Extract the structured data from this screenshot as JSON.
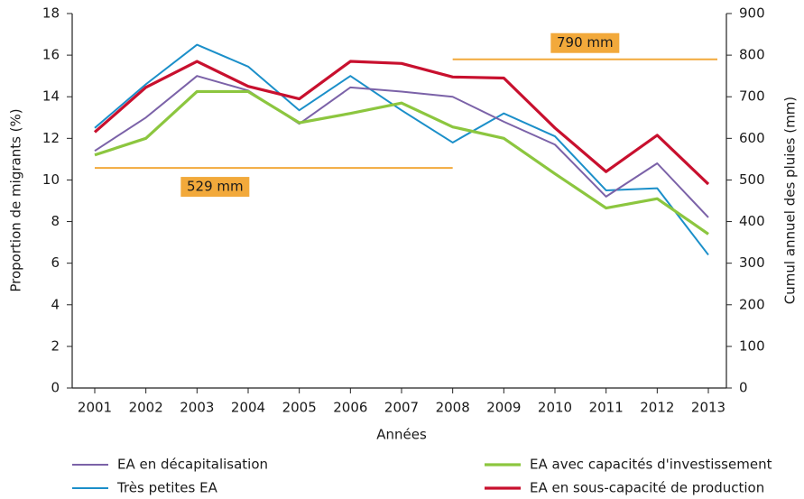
{
  "chart_data": {
    "type": "line",
    "x_label": "Années",
    "y_label": "Proportion de migrants (%)",
    "y2_label": "Cumul annuel des pluies (mm)",
    "categories": [
      "2001",
      "2002",
      "2003",
      "2004",
      "2005",
      "2006",
      "2007",
      "2008",
      "2009",
      "2010",
      "2011",
      "2012",
      "2013"
    ],
    "series": [
      {
        "name": "EA en décapitalisation",
        "color": "#7b62a8",
        "values": [
          11.4,
          13.0,
          15.0,
          14.3,
          12.7,
          14.45,
          14.25,
          14.0,
          12.8,
          11.7,
          9.2,
          10.8,
          8.2
        ]
      },
      {
        "name": "Très petites EA",
        "color": "#1b8fc9",
        "values": [
          12.5,
          14.6,
          16.5,
          15.45,
          13.35,
          15.0,
          13.35,
          11.8,
          13.2,
          12.1,
          9.5,
          9.6,
          6.4
        ]
      },
      {
        "name": "EA avec capacités d'investissement",
        "color": "#8cc63f",
        "values": [
          11.2,
          12.0,
          14.25,
          14.25,
          12.75,
          13.2,
          13.7,
          12.55,
          12.0,
          10.3,
          8.65,
          9.1,
          7.4
        ]
      },
      {
        "name": "EA en sous-capacité de production",
        "color": "#c8102e",
        "values": [
          12.3,
          14.45,
          15.7,
          14.5,
          13.9,
          15.7,
          15.6,
          14.95,
          14.9,
          12.5,
          10.4,
          12.15,
          9.8
        ]
      }
    ],
    "reference_lines": [
      {
        "value": 529,
        "value_label": "529 mm",
        "start": "2001",
        "end": "2008",
        "color": "#f2a93b"
      },
      {
        "value": 790,
        "value_label": "790 mm",
        "start": "2008",
        "end": "2013",
        "color": "#f2a93b"
      }
    ],
    "ylim": [
      0,
      18
    ],
    "yticks": [
      0,
      2,
      4,
      6,
      8,
      10,
      12,
      14,
      16,
      18
    ],
    "y2lim": [
      0,
      900
    ],
    "y2ticks": [
      0,
      100,
      200,
      300,
      400,
      500,
      600,
      700,
      800,
      900
    ]
  }
}
